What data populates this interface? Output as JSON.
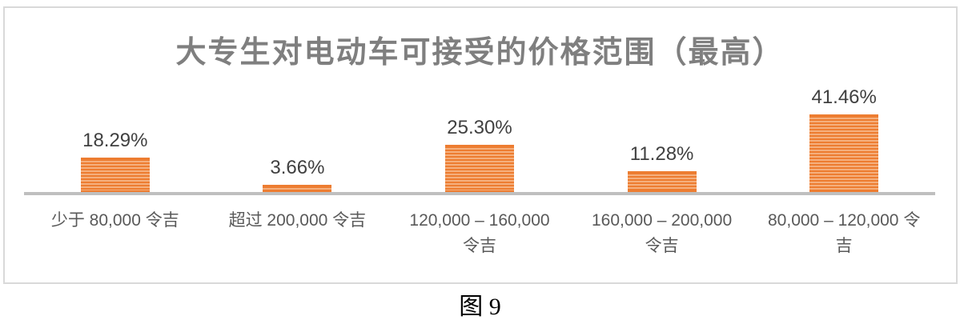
{
  "figure": {
    "caption": "图 9"
  },
  "chart_data": {
    "type": "bar",
    "title": "大专生对电动车可接受的价格范围（最高）",
    "categories": [
      "少于 80,000 令吉",
      "超过 200,000 令吉",
      "120,000 – 160,000\n令吉",
      "160,000 – 200,000\n令吉",
      "80,000 – 120,000 令\n吉"
    ],
    "values": [
      18.29,
      3.66,
      25.3,
      11.28,
      41.46
    ],
    "value_labels": [
      "18.29%",
      "3.66%",
      "25.30%",
      "11.28%",
      "41.46%"
    ],
    "xlabel": "",
    "ylabel": "",
    "ylim": [
      0,
      45
    ],
    "grid": false,
    "legend": "none",
    "data_label_position": "above-bar",
    "bar_pattern": "horizontal-stripes",
    "colors": {
      "bar_fill": "#ED7D31",
      "bar_stripe": "#F5AF7D",
      "axis_line": "#BFBFBF",
      "frame_border": "#D9D9D9",
      "title_text": "#7F7F7F",
      "category_text": "#595959",
      "value_text": "#404040",
      "caption_text": "#000000"
    }
  }
}
